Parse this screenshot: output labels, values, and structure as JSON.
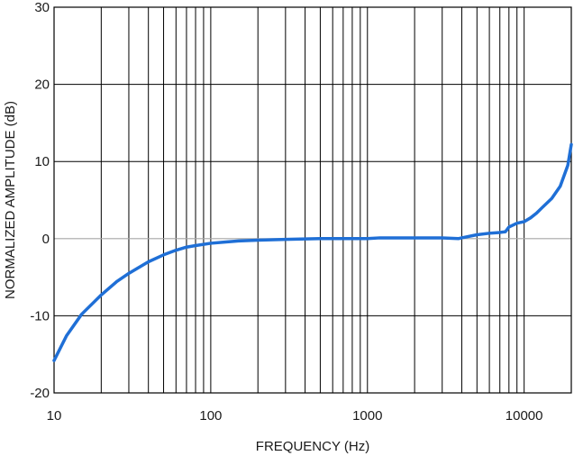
{
  "chart_data": {
    "type": "line",
    "title": "",
    "xlabel": "FREQUENCY (Hz)",
    "ylabel": "NORMALIZED AMPLITUDE (dB)",
    "xscale": "log",
    "xlim": [
      10,
      20000
    ],
    "ylim": [
      -20,
      30
    ],
    "grid": true,
    "x_ticks": [
      10,
      100,
      1000,
      10000
    ],
    "x_tick_labels": [
      "10",
      "100",
      "1000",
      "10000"
    ],
    "y_ticks": [
      -20,
      -10,
      0,
      10,
      20,
      30
    ],
    "y_tick_labels": [
      "-20",
      "-10",
      "0",
      "10",
      "20",
      "30"
    ],
    "reference_line_y": 0,
    "colors": {
      "series": "#1f6fd6",
      "grid": "#000000",
      "zero_line": "#a6a6a6"
    },
    "series": [
      {
        "x": [
          10,
          12,
          15,
          20,
          25,
          30,
          40,
          50,
          60,
          70,
          80,
          100,
          130,
          150,
          200,
          300,
          500,
          1000,
          1200,
          1500,
          2000,
          3000,
          3800,
          4000,
          5000,
          6000,
          7000,
          7600,
          8000,
          9000,
          10000,
          11000,
          12000,
          13000,
          15000,
          17000,
          19000,
          20000
        ],
        "y": [
          -15.8,
          -12.6,
          -9.8,
          -7.3,
          -5.6,
          -4.5,
          -3.0,
          -2.1,
          -1.5,
          -1.1,
          -0.9,
          -0.6,
          -0.4,
          -0.3,
          -0.2,
          -0.1,
          0.0,
          0.0,
          0.1,
          0.1,
          0.1,
          0.1,
          0.0,
          0.1,
          0.5,
          0.7,
          0.8,
          0.9,
          1.5,
          2.0,
          2.2,
          2.7,
          3.3,
          4.0,
          5.2,
          6.8,
          9.5,
          12.2
        ]
      }
    ]
  }
}
